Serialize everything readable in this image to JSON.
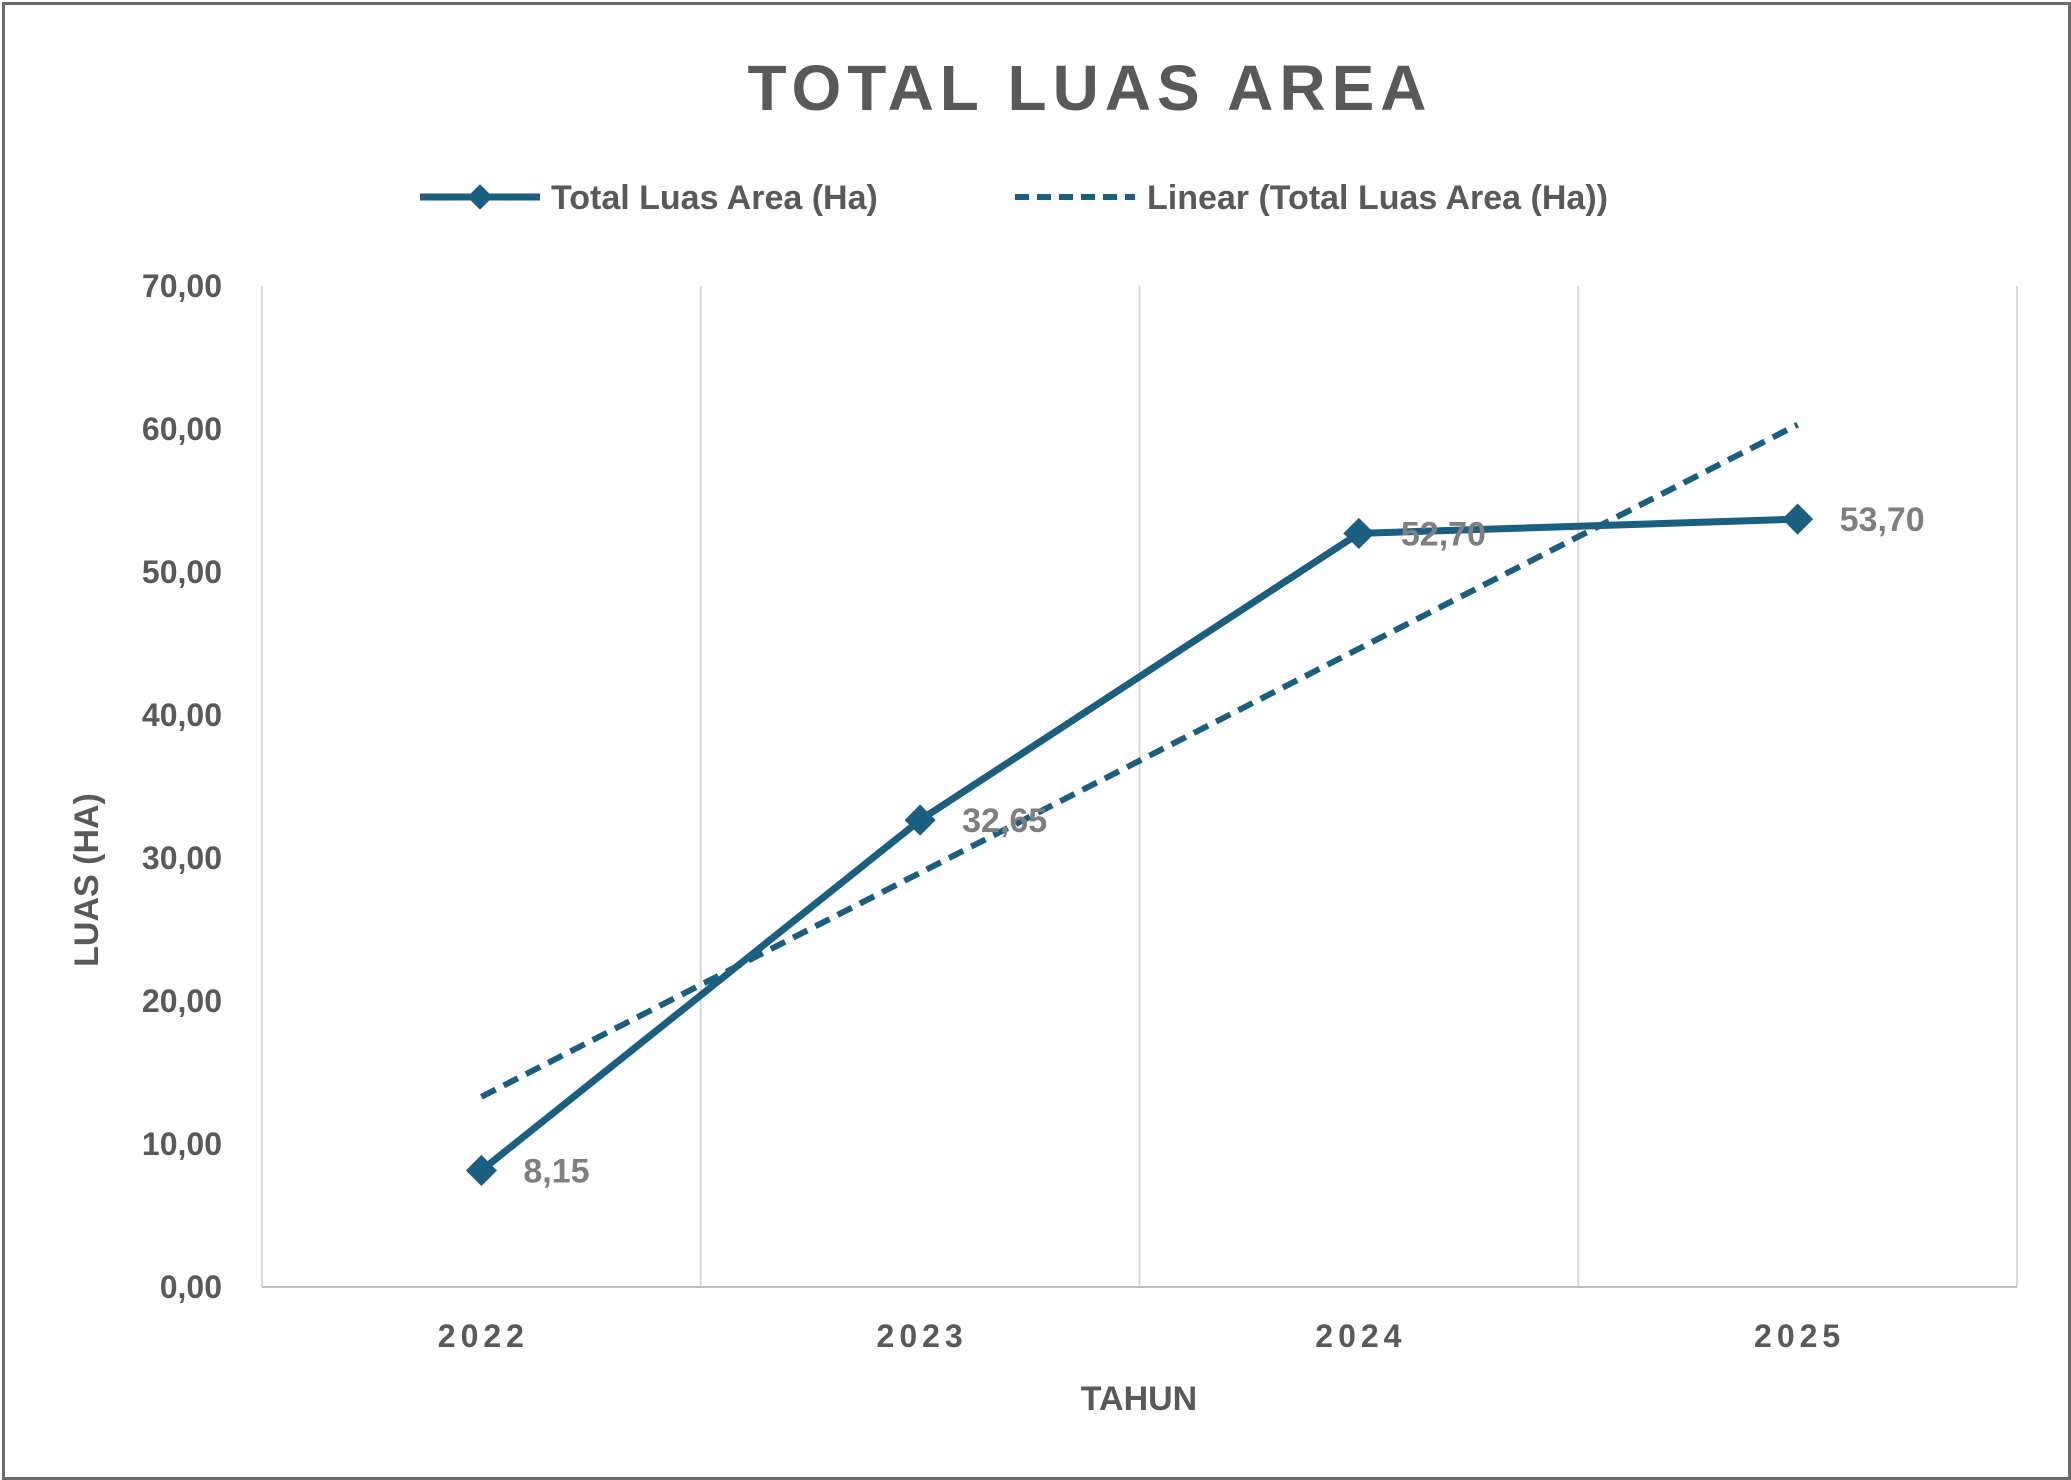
{
  "chart_data": {
    "type": "line",
    "title": "TOTAL LUAS AREA",
    "xlabel": "TAHUN",
    "ylabel": "LUAS (HA)",
    "categories": [
      "2022",
      "2023",
      "2024",
      "2025"
    ],
    "series": [
      {
        "name": "Total Luas Area (Ha)",
        "values": [
          8.15,
          32.65,
          52.7,
          53.7
        ],
        "color": "#1a5e80",
        "marker": "diamond"
      }
    ],
    "data_labels": [
      "8,15",
      "32,65",
      "52,70",
      "53,70"
    ],
    "trendline": {
      "name": "Linear (Total Luas Area (Ha))",
      "type": "linear",
      "style": "dashed",
      "color": "#1a5e80"
    },
    "ylim": [
      0,
      70
    ],
    "y_ticks": [
      "0,00",
      "10,00",
      "20,00",
      "30,00",
      "40,00",
      "50,00",
      "60,00",
      "70,00"
    ],
    "grid": "vertical",
    "legend_position": "top"
  }
}
